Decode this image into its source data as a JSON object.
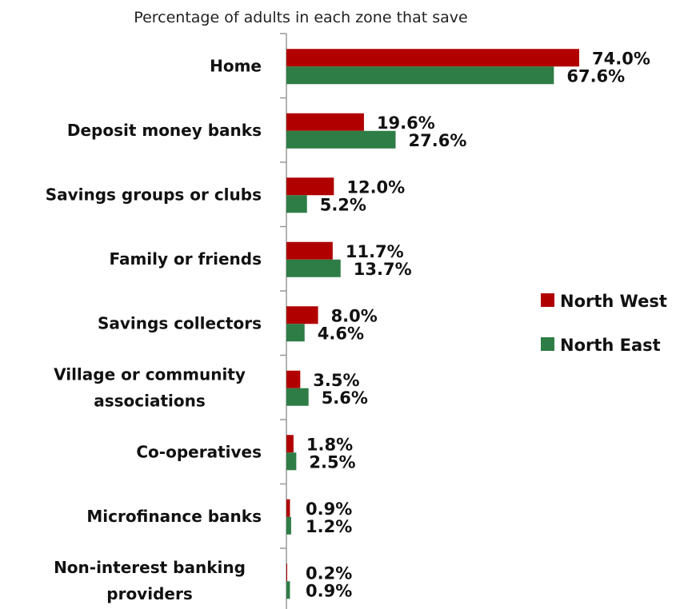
{
  "chart_data": {
    "type": "bar",
    "orientation": "horizontal",
    "title": "Percentage of adults in each zone that save",
    "categories": [
      "Home",
      "Deposit money banks",
      "Savings groups or clubs",
      "Family or friends",
      "Savings collectors",
      "Village or community associations",
      "Co-operatives",
      "Microfinance banks",
      "Non-interest banking providers"
    ],
    "series": [
      {
        "name": "North West",
        "color": "#b00000",
        "values": [
          74.0,
          19.6,
          12.0,
          11.7,
          8.0,
          3.5,
          1.8,
          0.9,
          0.2
        ],
        "labels": [
          "74.0%",
          "19.6%",
          "12.0%",
          "11.7%",
          "8.0%",
          "3.5%",
          "1.8%",
          "0.9%",
          "0.2%"
        ]
      },
      {
        "name": "North East",
        "color": "#2e7d46",
        "values": [
          67.6,
          27.6,
          5.2,
          13.7,
          4.6,
          5.6,
          2.5,
          1.2,
          0.9
        ],
        "labels": [
          "67.6%",
          "27.6%",
          "5.2%",
          "13.7%",
          "4.6%",
          "5.6%",
          "2.5%",
          "1.2%",
          "0.9%"
        ]
      }
    ],
    "xlim": [
      0,
      100
    ],
    "grid": false,
    "legend_position": "right"
  }
}
